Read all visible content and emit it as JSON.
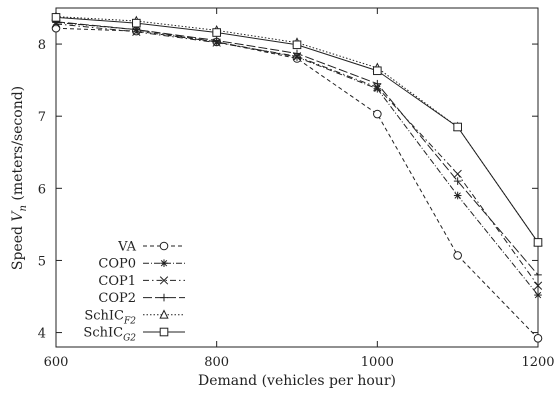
{
  "chart_data": {
    "type": "line",
    "title": "",
    "xlabel": "Demand (vehicles per hour)",
    "ylabel_main": "Speed ",
    "ylabel_var": "V",
    "ylabel_sub": "n",
    "ylabel_unit": " (meters/second)",
    "xlim": [
      600,
      1200
    ],
    "ylim": [
      3.8,
      8.5
    ],
    "xticks": [
      600,
      800,
      1000,
      1200
    ],
    "yticks": [
      4,
      5,
      6,
      7,
      8
    ],
    "grid": false,
    "legend_position": "bottom-left",
    "x": [
      600,
      700,
      800,
      900,
      1000,
      1100,
      1200
    ],
    "series": [
      {
        "name": "VA",
        "marker": "circle",
        "dash": "4,3",
        "values": [
          8.22,
          8.18,
          8.03,
          7.8,
          7.03,
          5.07,
          3.92
        ]
      },
      {
        "name": "COP0",
        "marker": "asterisk",
        "dash": "6,2,1,2",
        "values": [
          8.3,
          8.2,
          8.03,
          7.82,
          7.38,
          5.9,
          4.52
        ]
      },
      {
        "name": "COP1",
        "marker": "x",
        "dash": "6,3,1.5,3",
        "values": [
          8.28,
          8.17,
          8.02,
          7.83,
          7.4,
          6.2,
          4.65
        ]
      },
      {
        "name": "COP2",
        "marker": "plus",
        "dash": "9,3",
        "values": [
          8.31,
          8.2,
          8.05,
          7.87,
          7.45,
          6.1,
          4.8
        ]
      },
      {
        "name": "SchIC",
        "name_sub": "F2",
        "marker": "triangle",
        "dash": "1.5,2",
        "values": [
          8.38,
          8.32,
          8.19,
          8.02,
          7.67,
          6.85,
          5.25
        ]
      },
      {
        "name": "SchIC",
        "name_sub": "G2",
        "marker": "square",
        "dash": "",
        "values": [
          8.37,
          8.29,
          8.16,
          7.99,
          7.63,
          6.85,
          5.25
        ]
      }
    ]
  }
}
